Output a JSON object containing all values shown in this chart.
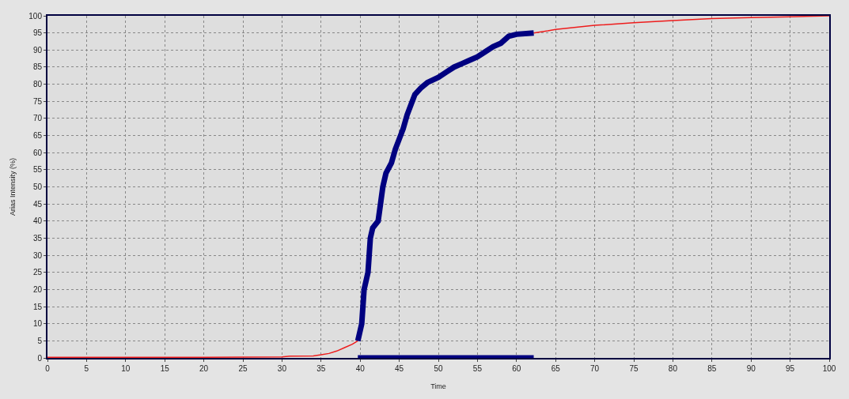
{
  "chart_data": {
    "type": "line",
    "xlabel": "Time",
    "ylabel": "Arias Intensity (%)",
    "xlim": [
      0,
      100
    ],
    "xticks": [
      0,
      5,
      10,
      15,
      20,
      25,
      30,
      35,
      40,
      45,
      50,
      55,
      60,
      65,
      70,
      75,
      80,
      85,
      90,
      95,
      100
    ],
    "ylim": [
      0,
      100
    ],
    "yticks": [
      0,
      5,
      10,
      15,
      20,
      25,
      30,
      35,
      40,
      45,
      50,
      55,
      60,
      65,
      70,
      75,
      80,
      85,
      90,
      95,
      100
    ],
    "grid": true,
    "line_style": "solid",
    "series": [
      {
        "color": "#ee1c1c",
        "x": [
          0,
          10,
          20,
          30,
          31,
          34,
          35,
          36,
          37,
          38,
          39,
          39.7,
          null,
          62.2,
          64,
          65,
          70,
          75,
          80,
          85,
          90,
          95,
          100
        ],
        "values": [
          0.2,
          0.2,
          0.2,
          0.3,
          0.5,
          0.6,
          0.9,
          1.3,
          2,
          3,
          4,
          5,
          null,
          95,
          95.6,
          96,
          97.2,
          98,
          98.6,
          99.2,
          99.5,
          99.7,
          100
        ]
      },
      {
        "color": "#000080",
        "x": [
          39.7,
          40.2,
          40.5,
          40.8,
          41,
          41.3,
          41.6,
          42.3,
          42.6,
          42.9,
          43.3,
          44,
          44.5,
          45,
          45.5,
          46,
          46.5,
          47,
          47.8,
          48.6,
          50,
          51,
          52,
          53,
          54,
          55,
          56,
          57,
          58,
          59,
          60,
          62.2
        ],
        "values": [
          5,
          10,
          20,
          23,
          25,
          35,
          38,
          40,
          45,
          50,
          54,
          57,
          61,
          64,
          67,
          71,
          74,
          77,
          79,
          80.5,
          82,
          83.5,
          85,
          86,
          87,
          88,
          89.5,
          91,
          92,
          94,
          94.6,
          95
        ]
      },
      {
        "color": "#000080",
        "x": [
          39.7,
          62.2
        ],
        "values": [
          0,
          0
        ]
      }
    ]
  }
}
